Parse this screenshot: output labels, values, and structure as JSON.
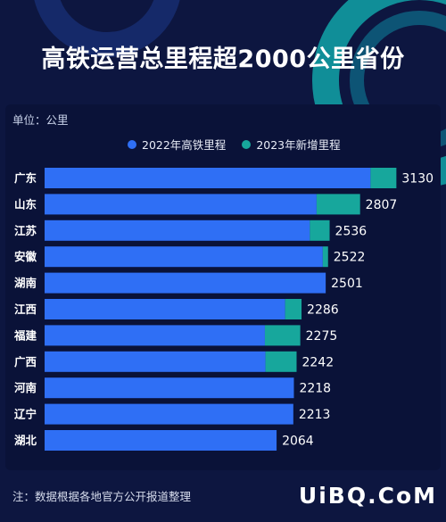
{
  "title": "高铁运营总里程超2000公里省份",
  "unit_label": "单位：公里",
  "note": "注：数据根据各地官方公开报道整理",
  "watermark": "UiBQ.CoM",
  "colors": {
    "background": "#0d1640",
    "series_2022": "#2f6ff5",
    "series_2023": "#17a79c",
    "text": "#ffffff"
  },
  "chart_data": {
    "type": "bar",
    "orientation": "horizontal",
    "stacked": true,
    "categories": [
      "广东",
      "山东",
      "江苏",
      "安徽",
      "湖南",
      "江西",
      "福建",
      "广西",
      "河南",
      "辽宁",
      "湖北"
    ],
    "series": [
      {
        "name": "2022年高铁里程",
        "values": [
          2900,
          2420,
          2360,
          2475,
          2501,
          2140,
          1960,
          1965,
          2218,
          2213,
          2064
        ]
      },
      {
        "name": "2023年新增里程",
        "values": [
          230,
          387,
          176,
          47,
          0,
          146,
          315,
          277,
          0,
          0,
          0
        ]
      }
    ],
    "totals": [
      3130,
      2807,
      2536,
      2522,
      2501,
      2286,
      2275,
      2242,
      2218,
      2213,
      2064
    ],
    "xlim": [
      0,
      3500
    ],
    "legend_position": "top",
    "grid": false
  }
}
